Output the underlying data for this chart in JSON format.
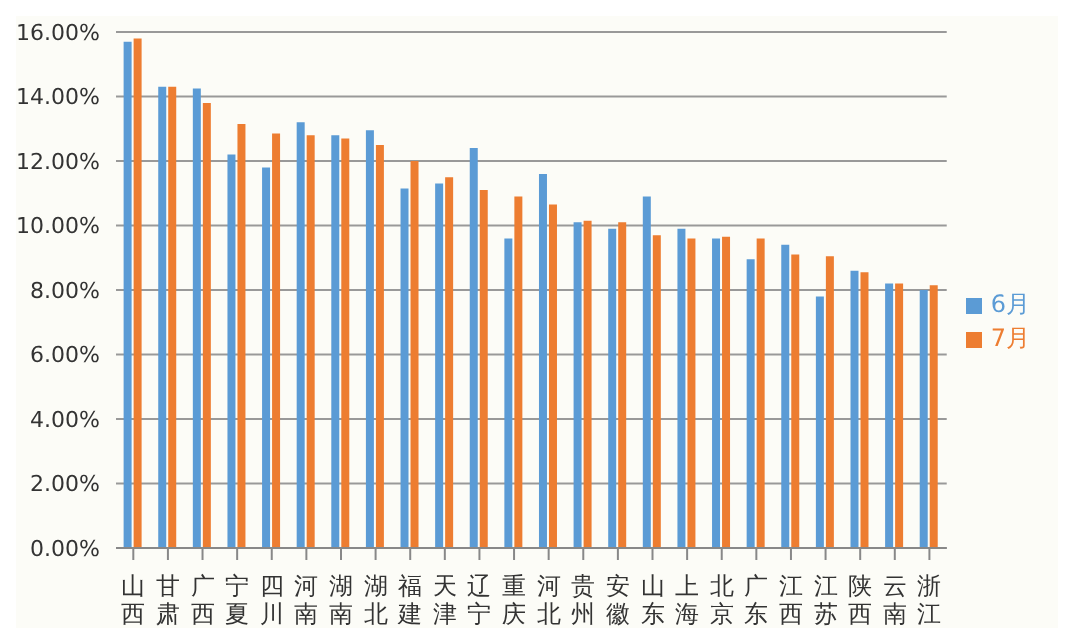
{
  "chart_data": {
    "type": "bar",
    "categories": [
      "山西",
      "甘肃",
      "广西",
      "宁夏",
      "四川",
      "河南",
      "湖南",
      "湖北",
      "福建",
      "天津",
      "辽宁",
      "重庆",
      "河北",
      "贵州",
      "安徽",
      "山东",
      "上海",
      "北京",
      "广东",
      "江西",
      "江苏",
      "陕西",
      "云南",
      "浙江"
    ],
    "series": [
      {
        "name": "6月",
        "color": "#5b9bd5",
        "values": [
          15.7,
          14.3,
          14.25,
          12.2,
          11.8,
          13.2,
          12.8,
          12.95,
          11.15,
          11.3,
          12.4,
          9.6,
          11.6,
          10.1,
          9.9,
          10.9,
          9.9,
          9.6,
          8.95,
          9.4,
          7.8,
          8.6,
          8.2,
          8.0
        ]
      },
      {
        "name": "7月",
        "color": "#ed7d31",
        "values": [
          15.8,
          14.3,
          13.8,
          13.15,
          12.85,
          12.8,
          12.7,
          12.5,
          12.0,
          11.5,
          11.1,
          10.9,
          10.65,
          10.15,
          10.1,
          9.7,
          9.6,
          9.65,
          9.6,
          9.1,
          9.05,
          8.55,
          8.2,
          8.15
        ]
      }
    ],
    "ylim": [
      0,
      16
    ],
    "yticks": [
      {
        "value": 0,
        "label": "0.00%"
      },
      {
        "value": 2,
        "label": "2.00%"
      },
      {
        "value": 4,
        "label": "4.00%"
      },
      {
        "value": 6,
        "label": "6.00%"
      },
      {
        "value": 8,
        "label": "8.00%"
      },
      {
        "value": 10,
        "label": "10.00%"
      },
      {
        "value": 12,
        "label": "12.00%"
      },
      {
        "value": 14,
        "label": "14.00%"
      },
      {
        "value": 16,
        "label": "16.00%"
      }
    ],
    "grid": "y",
    "legend": "right"
  }
}
